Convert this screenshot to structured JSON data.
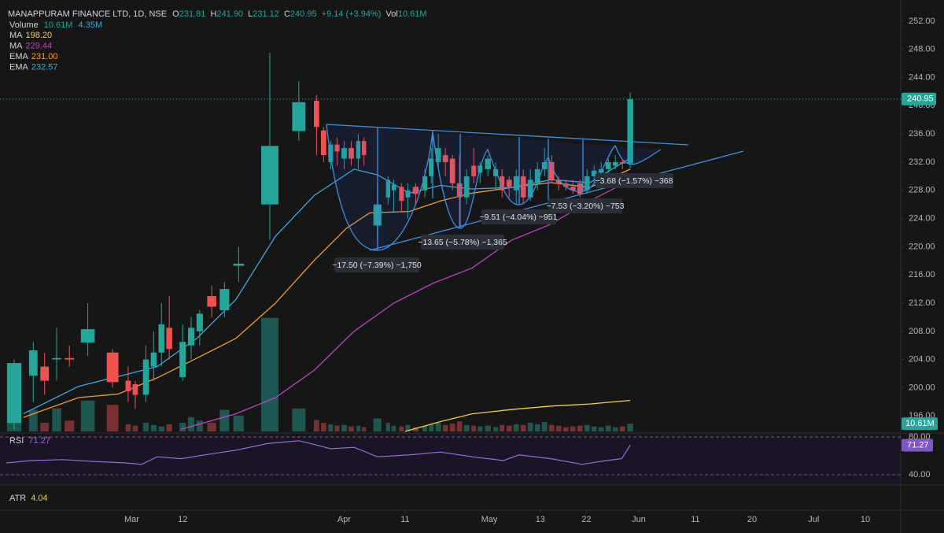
{
  "chart_data": {
    "type": "candlestick",
    "header": {
      "title": "MANAPPURAM FINANCE LTD, 1D, NSE",
      "o_label": "O",
      "o": "231.81",
      "h_label": "H",
      "h": "241.90",
      "l_label": "L",
      "l": "231.12",
      "c_label": "C",
      "c": "240.95",
      "change": "+9.14 (+3.94%)",
      "vol_label": "Vol",
      "vol": "10.61M"
    },
    "volume_legend": {
      "name": "Volume",
      "value": "10.61M",
      "ma": "4.35M"
    },
    "up_color": "#26a69a",
    "down_color": "#ef5350",
    "x": [
      2,
      4.7,
      6.3,
      8,
      9.8,
      12.4,
      15.9,
      18.1,
      19.1,
      20.6,
      21.7,
      22.8,
      23.9,
      25.8,
      27,
      28.2,
      29.9,
      31.7,
      33.7,
      38.1,
      42.2,
      44.7,
      45.7,
      46.7,
      47.6,
      48.6,
      49.6,
      50.6,
      51.4,
      53.3,
      54.8,
      55.6,
      56.7,
      57.6,
      58.7,
      60,
      60.9,
      61.9,
      62.9,
      63.9,
      64.9,
      65.9,
      66.9,
      67.8,
      68.9,
      70,
      70.9,
      71.9,
      72.9,
      73.9,
      74.9,
      75.9,
      76.9,
      77.9,
      78.9,
      79.9,
      80.9,
      81.9,
      82.9,
      83.9,
      84.9,
      85.9,
      86.9,
      87.9,
      89
    ],
    "open": [
      195,
      201.7,
      203,
      204,
      204.2,
      206.4,
      205,
      201,
      200.5,
      199,
      203,
      205,
      208.5,
      201.5,
      206,
      208,
      213,
      211,
      217.3,
      226,
      236.4,
      240.7,
      236.5,
      232,
      234.5,
      232.5,
      234,
      232.5,
      235,
      223,
      227,
      228,
      228.5,
      227,
      228.5,
      228,
      230,
      232,
      233,
      232.5,
      229,
      227,
      231.5,
      230.5,
      231,
      230,
      230,
      229.5,
      228,
      230,
      227,
      229,
      231,
      232,
      229.5,
      229,
      228.5,
      229,
      228,
      230,
      230.5,
      231,
      231.5,
      232,
      231.81
    ],
    "high": [
      204,
      206.5,
      205,
      208.5,
      206,
      212,
      205.5,
      203,
      201,
      206,
      208,
      212,
      213,
      209,
      210,
      211,
      214.5,
      215,
      220,
      247.5,
      243.5,
      241.5,
      237,
      235,
      235.5,
      235,
      235,
      236,
      235.5,
      229,
      230,
      229.5,
      229,
      229,
      229,
      231,
      234,
      236,
      234,
      233,
      233,
      231,
      234,
      232,
      233,
      232,
      231,
      230,
      231,
      231,
      231,
      232,
      234,
      233,
      230,
      229.5,
      229.5,
      229.5,
      231,
      231.5,
      232,
      232.5,
      233,
      232.5,
      241.9
    ],
    "low": [
      194,
      198,
      199,
      201,
      203,
      204.5,
      200,
      198,
      197,
      198,
      201,
      203,
      204,
      201,
      204,
      206,
      210,
      210,
      215,
      221,
      235,
      233,
      232,
      231,
      231.5,
      231,
      231.5,
      231,
      231.5,
      221,
      226,
      225,
      225,
      224,
      226,
      227,
      229,
      231,
      230,
      228,
      223,
      226,
      229,
      229,
      230,
      228,
      227,
      227,
      226,
      226,
      226.5,
      228,
      230,
      229,
      228,
      228,
      227.5,
      227,
      227.5,
      229,
      230,
      230,
      231,
      231,
      231.12
    ],
    "close": [
      203.5,
      205.3,
      201,
      204.2,
      204,
      208.3,
      200.8,
      199.5,
      199,
      204,
      205,
      209,
      205.5,
      206.5,
      208.5,
      210.5,
      211.5,
      214,
      217.6,
      234.3,
      240.5,
      237,
      233,
      234.5,
      233.5,
      234,
      232.5,
      235,
      233,
      226,
      229.5,
      228.8,
      226.5,
      228,
      227.5,
      230,
      232.5,
      234,
      232,
      229,
      227,
      230,
      230,
      231.5,
      232.5,
      231,
      228,
      228.5,
      230,
      227,
      229.5,
      231,
      232,
      229.5,
      229,
      228.5,
      228,
      227.5,
      230,
      230.8,
      231,
      232,
      232,
      231.8,
      240.95
    ],
    "volume": [
      95,
      30,
      12,
      32,
      15,
      43,
      37,
      10,
      8,
      12,
      9,
      7,
      10,
      12,
      20,
      15,
      12,
      30,
      22,
      158,
      32,
      16,
      12,
      10,
      8,
      9,
      7,
      8,
      6,
      18,
      12,
      8,
      7,
      9,
      6,
      8,
      10,
      12,
      9,
      11,
      14,
      9,
      8,
      7,
      8,
      6,
      9,
      8,
      10,
      9,
      12,
      10,
      13,
      9,
      8,
      6,
      7,
      8,
      9,
      7,
      6,
      8,
      6,
      7,
      10.61
    ],
    "xlim": [
      0,
      127.2
    ],
    "xticks": [
      {
        "value": 18.6,
        "label": "Mar"
      },
      {
        "value": 25.8,
        "label": "12"
      },
      {
        "value": 48.6,
        "label": "Apr"
      },
      {
        "value": 57.2,
        "label": "11"
      },
      {
        "value": 69.1,
        "label": "May"
      },
      {
        "value": 76.3,
        "label": "13"
      },
      {
        "value": 82.8,
        "label": "22"
      },
      {
        "value": 90.2,
        "label": "Jun"
      },
      {
        "value": 98.2,
        "label": "11"
      },
      {
        "value": 106.2,
        "label": "20"
      },
      {
        "value": 114.9,
        "label": "Jul"
      },
      {
        "value": 122.2,
        "label": "10"
      }
    ],
    "ylim": [
      193.8,
      255
    ],
    "yticks": [
      {
        "value": 252,
        "label": "252.00"
      },
      {
        "value": 248,
        "label": "248.00"
      },
      {
        "value": 244,
        "label": "244.00"
      },
      {
        "value": 240,
        "label": "240.00"
      },
      {
        "value": 236,
        "label": "236.00"
      },
      {
        "value": 232,
        "label": "232.00"
      },
      {
        "value": 228,
        "label": "228.00"
      },
      {
        "value": 224,
        "label": "224.00"
      },
      {
        "value": 220,
        "label": "220.00"
      },
      {
        "value": 216,
        "label": "216.00"
      },
      {
        "value": 212,
        "label": "212.00"
      },
      {
        "value": 208,
        "label": "208.00"
      },
      {
        "value": 204,
        "label": "204.00"
      },
      {
        "value": 200,
        "label": "200.00"
      },
      {
        "value": 196,
        "label": "196.00"
      }
    ],
    "volume_lim": [
      0,
      600
    ],
    "lines": [
      {
        "name": "MA",
        "value_label": "198.20",
        "color": "#f5d142",
        "x": [
          57.2,
          62.2,
          66.7,
          72.2,
          77.8,
          83.3,
          89
        ],
        "values": [
          193.8,
          195.2,
          196.3,
          196.9,
          197.4,
          197.7,
          198.2
        ]
      },
      {
        "name": "MA",
        "value_label": "229.44",
        "color": "#c040c8",
        "x": [
          25.6,
          33.3,
          38.9,
          44.4,
          50,
          55.6,
          61.1,
          66.7,
          72.2,
          77.8,
          83.3,
          89
        ],
        "values": [
          194.1,
          196.3,
          198.6,
          202.5,
          208,
          212,
          214.8,
          217,
          220.9,
          223.2,
          226.5,
          229.44
        ]
      },
      {
        "name": "EMA",
        "value_label": "231.00",
        "color": "#f39c33",
        "x": [
          3.3,
          11.1,
          16.7,
          22.2,
          27.8,
          33.3,
          38.9,
          44.4,
          48.9,
          52.2,
          57.8,
          62.2,
          66.7,
          72.2,
          77.8,
          83.3,
          89
        ],
        "values": [
          195.8,
          198.6,
          199.1,
          201.4,
          204.2,
          207,
          212,
          218.1,
          222.6,
          224.8,
          225,
          226.5,
          227.6,
          228.4,
          229.1,
          228.4,
          231
        ]
      },
      {
        "name": "EMA",
        "value_label": "232.57",
        "color": "#3fa7e0",
        "x": [
          3.3,
          11.1,
          16.7,
          22.2,
          27.8,
          33.3,
          38.9,
          44.4,
          50,
          53.3,
          57.8,
          62.2,
          66.7,
          72.2,
          77.8,
          83.3,
          89
        ],
        "values": [
          196.3,
          200.2,
          201.6,
          203,
          207,
          212.5,
          221.5,
          227.3,
          231,
          230.2,
          227.6,
          228.7,
          228.2,
          228.4,
          229.5,
          229.1,
          232.57
        ]
      }
    ],
    "rsi": {
      "name": "RSI",
      "color": "#9c6ade",
      "ylim": [
        30,
        81.7
      ],
      "yticks": [
        {
          "value": 80,
          "label": "80.00"
        },
        {
          "value": 40,
          "label": "40.00"
        }
      ],
      "x": [
        0.9,
        4.4,
        8.9,
        13.3,
        17.8,
        20,
        22.2,
        25.6,
        28.9,
        33.3,
        37.8,
        42.2,
        44.4,
        46.7,
        50,
        53.3,
        57.8,
        62.2,
        66.7,
        71.1,
        73.3,
        77.8,
        82.2,
        85.6,
        87.8,
        89
      ],
      "values": [
        52.5,
        55,
        56,
        54,
        52.5,
        51,
        59,
        57,
        61,
        66,
        73,
        76,
        72,
        67.5,
        69,
        59,
        61,
        64,
        59,
        55,
        61,
        57,
        51,
        55,
        57,
        71.27
      ]
    },
    "atr": {
      "name": "ATR",
      "value": "4.04"
    },
    "measurements": [
      "−17.50 (−7.39%) −1,750",
      "−13.65 (−5.78%) −1,365",
      "−9.51 (−4.04%) −951",
      "−7.53 (−3.20%) −753",
      "−3.68 (−1.57%) −368"
    ]
  }
}
